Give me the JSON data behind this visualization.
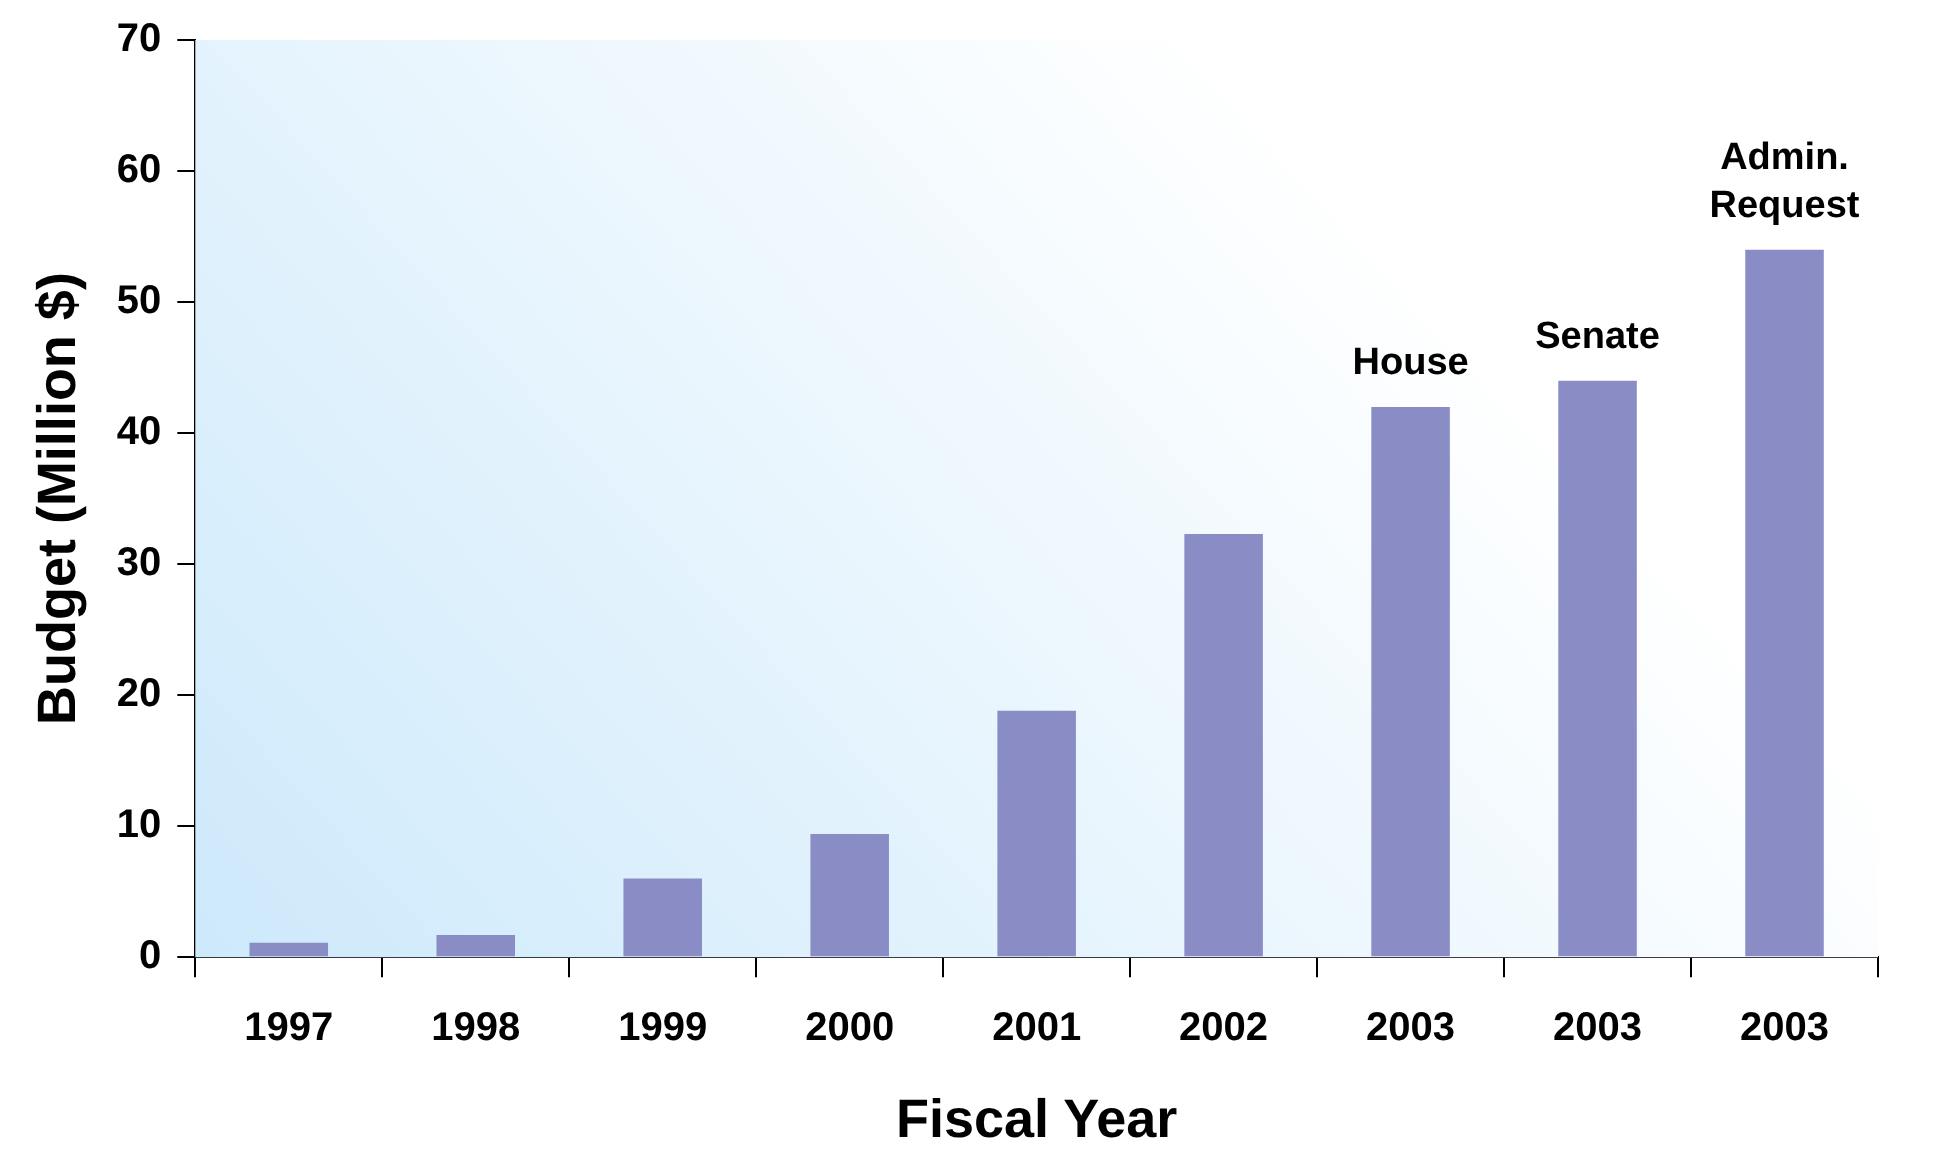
{
  "chart_data": {
    "type": "bar",
    "xlabel": "Fiscal Year",
    "ylabel": "Budget (Million $)",
    "categories": [
      "1997",
      "1998",
      "1999",
      "2000",
      "2001",
      "2002",
      "2003",
      "2003",
      "2003"
    ],
    "values": [
      1.1,
      1.7,
      6.0,
      9.4,
      18.8,
      32.3,
      42,
      44,
      54
    ],
    "color": "#8a8cc6",
    "ylim": [
      0,
      70
    ],
    "yticks": [
      0,
      10,
      20,
      30,
      40,
      50,
      60,
      70
    ],
    "grid": false,
    "legend": false,
    "annotations": [
      "House",
      "Senate",
      "Admin.\nRequest"
    ]
  }
}
